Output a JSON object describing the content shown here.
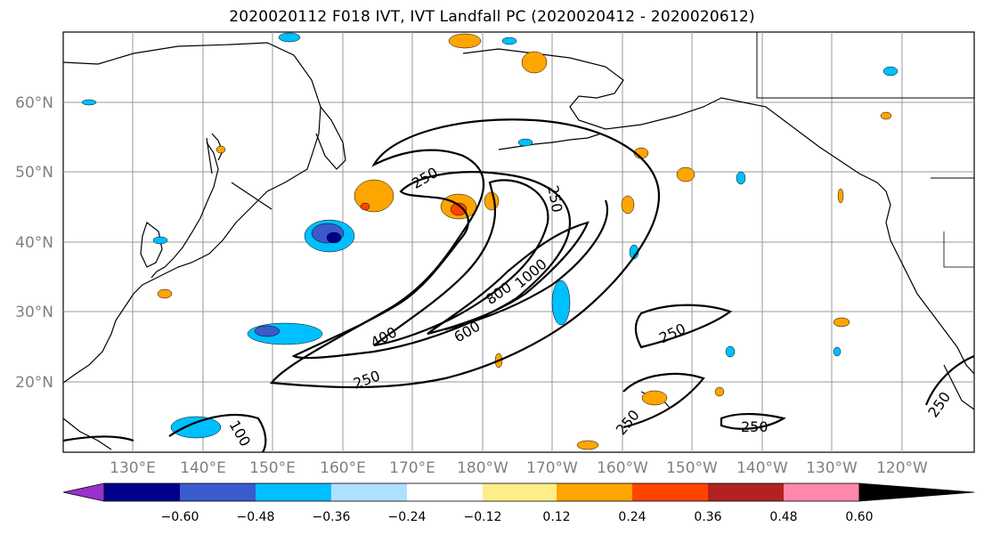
{
  "title": "2020020112 F018 IVT, IVT Landfall PC (2020020412 - 2020020612)",
  "map": {
    "lon_labels": [
      "130°E",
      "140°E",
      "150°E",
      "160°E",
      "170°E",
      "180°W",
      "170°W",
      "160°W",
      "150°W",
      "140°W",
      "130°W",
      "120°W"
    ],
    "lat_labels": [
      "60°N",
      "50°N",
      "40°N",
      "30°N",
      "20°N"
    ],
    "contour_labels": [
      "250",
      "250",
      "600",
      "800",
      "1000",
      "400",
      "250",
      "250",
      "250",
      "250",
      "100",
      "250"
    ],
    "land_color": "#ffffff",
    "coastline_color": "#000000"
  },
  "colorbar": {
    "colors": [
      "#9932cc",
      "#00008b",
      "#3a5bcd",
      "#00bfff",
      "#b0e0ff",
      "#ffffff",
      "#ffee88",
      "#ffa500",
      "#ff4500",
      "#b22222",
      "#ff88aa"
    ],
    "tick_labels": [
      "−0.60",
      "−0.48",
      "−0.36",
      "−0.24",
      "−0.12",
      "0.12",
      "0.24",
      "0.36",
      "0.48",
      "0.60"
    ]
  }
}
